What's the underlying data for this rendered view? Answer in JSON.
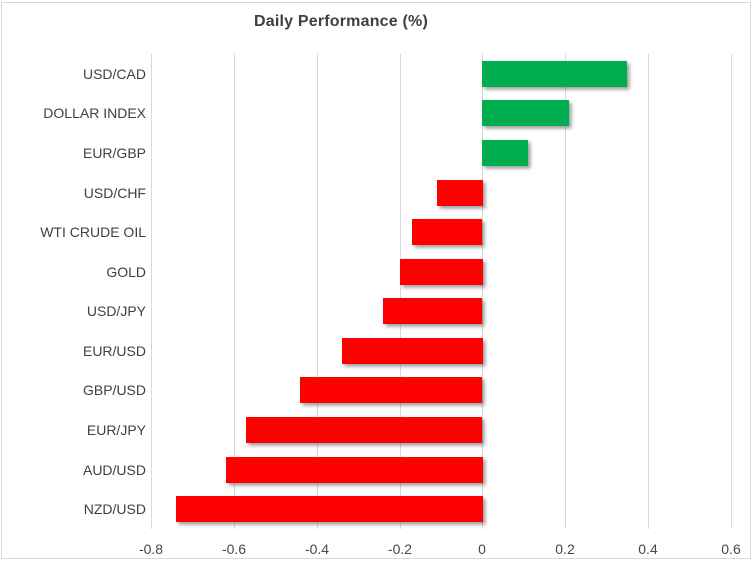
{
  "chart_data": {
    "type": "bar",
    "orientation": "horizontal",
    "title": "Daily Performance (%)",
    "categories": [
      "USD/CAD",
      "DOLLAR INDEX",
      "EUR/GBP",
      "USD/CHF",
      "WTI CRUDE OIL",
      "GOLD",
      "USD/JPY",
      "EUR/USD",
      "GBP/USD",
      "EUR/JPY",
      "AUD/USD",
      "NZD/USD"
    ],
    "values": [
      0.35,
      0.21,
      0.11,
      -0.11,
      -0.17,
      -0.2,
      -0.24,
      -0.34,
      -0.44,
      -0.57,
      -0.62,
      -0.74
    ],
    "xlim": [
      -0.8,
      0.6
    ],
    "x_ticks": [
      -0.8,
      -0.6,
      -0.4,
      -0.2,
      0,
      0.2,
      0.4,
      0.6
    ],
    "x_tick_labels": [
      "-0.8",
      "-0.6",
      "-0.4",
      "-0.2",
      "0",
      "0.2",
      "0.4",
      "0.6"
    ],
    "grid": true,
    "legend": false,
    "xlabel": "",
    "ylabel": ""
  },
  "colors": {
    "positive_bar": "#00AE50",
    "negative_bar": "#FF0000",
    "gridline": "#D9D9D9",
    "frame_border": "#D9D9D9",
    "title_text": "#404040",
    "label_text": "#404040",
    "background": "#FFFFFF"
  }
}
